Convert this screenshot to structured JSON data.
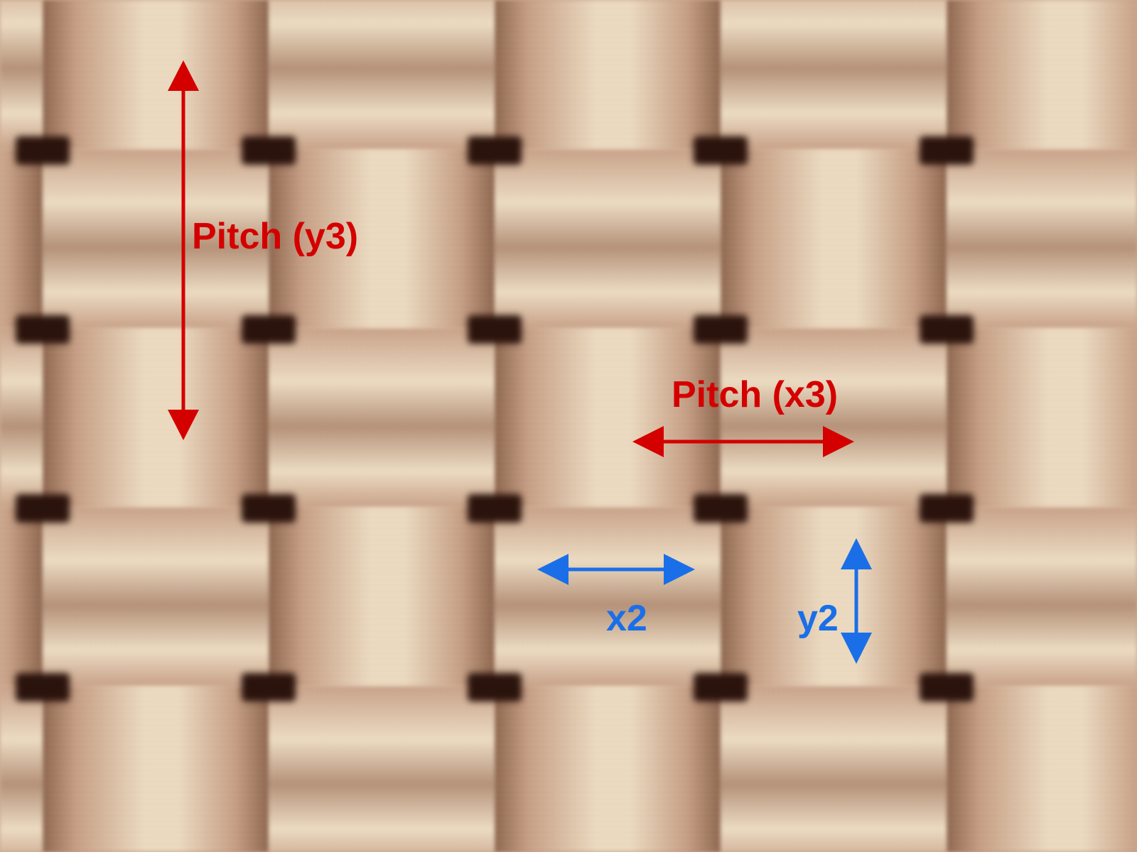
{
  "image": {
    "subject": "woven fabric micrograph",
    "colors": {
      "yarn_light": "#f3e3c8",
      "yarn_mid": "#c9a085",
      "gap": "#2a130c",
      "pitch_annotation": "#d40000",
      "gap_annotation": "#1a6fe8"
    }
  },
  "annotations": {
    "pitch_y": {
      "label": "Pitch (y3)"
    },
    "pitch_x": {
      "label": "Pitch (x3)"
    },
    "gap_x": {
      "label": "x2"
    },
    "gap_y": {
      "label": "y2"
    }
  }
}
